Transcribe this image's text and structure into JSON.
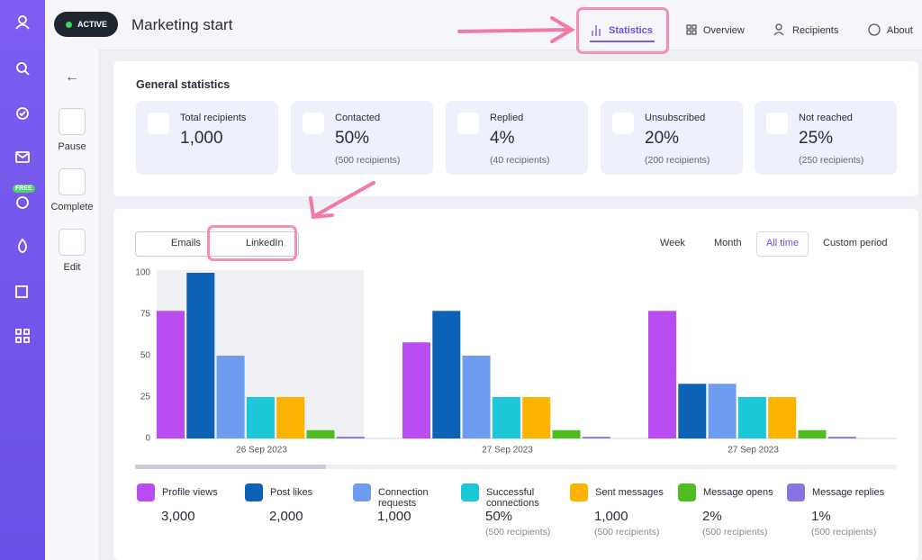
{
  "header": {
    "status": "ACTIVE",
    "title": "Marketing start",
    "tabs": [
      "Statistics",
      "Overview",
      "Recipients",
      "About"
    ]
  },
  "sidebar": {
    "badge": "FREE",
    "actions": [
      "Pause",
      "Complete",
      "Edit"
    ]
  },
  "general": {
    "title": "General statistics",
    "cards": [
      {
        "label": "Total recipients",
        "value": "1,000"
      },
      {
        "label": "Contacted",
        "value": "50%",
        "sub": "(500 recipients)"
      },
      {
        "label": "Replied",
        "value": "4%",
        "sub": "(40 recipients)"
      },
      {
        "label": "Unsubscribed",
        "value": "20%",
        "sub": "(200 recipients)"
      },
      {
        "label": "Not reached",
        "value": "25%",
        "sub": "(250 recipients)"
      }
    ]
  },
  "channels": [
    "Emails",
    "LinkedIn"
  ],
  "periods": [
    "Week",
    "Month",
    "All time",
    "Custom period"
  ],
  "chart_data": {
    "type": "bar",
    "categories": [
      "26 Sep 2023",
      "27 Sep 2023",
      "27 Sep 2023"
    ],
    "ylim": [
      0,
      100
    ],
    "yticks": [
      0,
      25,
      50,
      75,
      100
    ],
    "grid": false,
    "series": [
      {
        "name": "Profile views",
        "color": "#b94df2",
        "values": [
          77,
          58,
          77
        ]
      },
      {
        "name": "Post likes",
        "color": "#0b62b6",
        "values": [
          100,
          77,
          33
        ]
      },
      {
        "name": "Connection requests",
        "color": "#6d9cf0",
        "values": [
          50,
          50,
          33
        ]
      },
      {
        "name": "Successful connections",
        "color": "#1cc8d8",
        "values": [
          25,
          25,
          25
        ]
      },
      {
        "name": "Sent messages",
        "color": "#fcb400",
        "values": [
          25,
          25,
          25
        ]
      },
      {
        "name": "Message opens",
        "color": "#4dbd1f",
        "values": [
          5,
          5,
          5
        ]
      },
      {
        "name": "Message replies",
        "color": "#8b73e2",
        "values": [
          1,
          1,
          1
        ]
      }
    ]
  },
  "summary": [
    {
      "value": "3,000"
    },
    {
      "value": "2,000"
    },
    {
      "value": "1,000"
    },
    {
      "value": "50%",
      "sub": "(500 recipients)"
    },
    {
      "value": "1,000",
      "sub": "(500 recipients)"
    },
    {
      "value": "2%",
      "sub": "(500 recipients)"
    },
    {
      "value": "1%",
      "sub": "(500 recipients)"
    }
  ]
}
